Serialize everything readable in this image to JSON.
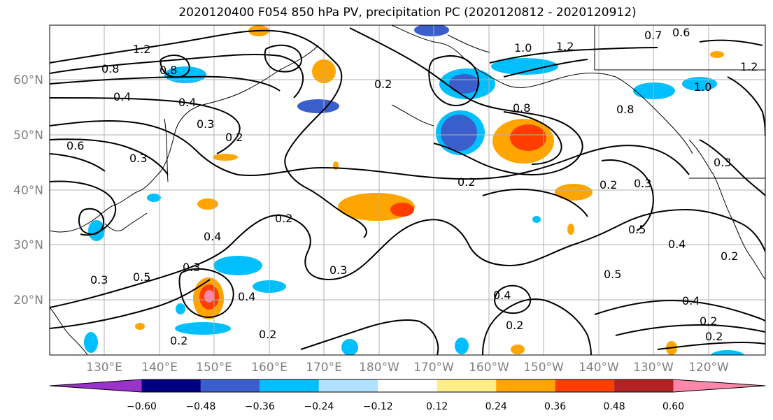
{
  "title": "2020120400 F054 850 hPa PV, precipitation PC (2020120812 - 2020120912)",
  "lat_labels": [
    "60°N",
    "50°N",
    "40°N",
    "30°N",
    "20°N"
  ],
  "lon_labels": [
    "130°E",
    "140°E",
    "150°E",
    "160°E",
    "170°E",
    "180°W",
    "170°W",
    "160°W",
    "150°W",
    "140°W",
    "130°W",
    "120°W"
  ],
  "colorbar": {
    "ticks": [
      "−0.60",
      "−0.48",
      "−0.36",
      "−0.24",
      "−0.12",
      "0.12",
      "0.24",
      "0.36",
      "0.48",
      "0.60"
    ],
    "colors": [
      "#9933cc",
      "#000080",
      "#3a5fcd",
      "#00bfff",
      "#b0e2ff",
      "#ffffff",
      "#ffee88",
      "#ffa500",
      "#ff3d00",
      "#b22222",
      "#ff88aa"
    ]
  },
  "contour_labels": [
    "1.2",
    "1.0",
    "0.8",
    "0.8",
    "0.8",
    "0.4",
    "0.4",
    "0.2",
    "0.2",
    "0.3",
    "0.6",
    "0.3",
    "0.2",
    "0.4",
    "0.3",
    "0.3",
    "0.5",
    "0.4",
    "0.3",
    "0.2",
    "0.2",
    "0.8",
    "0.2",
    "0.3",
    "0.5",
    "0.4",
    "0.5",
    "0.4",
    "0.2",
    "0.2",
    "0.2",
    "0.6",
    "0.7",
    "1.0",
    "1.2",
    "1.2",
    "0.4",
    "0.2",
    "0.2",
    "0.3"
  ]
}
